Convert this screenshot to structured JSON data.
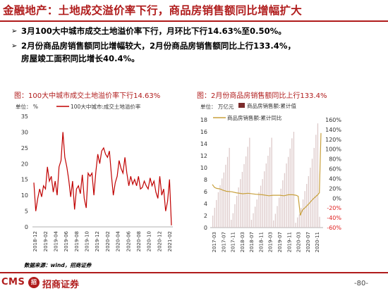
{
  "page": {
    "title": "金融地产：土地成交溢价率下行，商品房销售额同比增幅扩大",
    "bullets": [
      "3月100大中城市成交土地溢价率下行，月环比下行14.63%至0.50%。",
      "2月份商品房销售额同比增幅较大，2月份商品房销售额同比上行133.4%，",
      "房屋竣工面积同比增长40.4%。"
    ],
    "bullet_mark": "➢",
    "source": "数据来源：wind，招商证券",
    "logo_cms": "CMS",
    "logo_circle": "招",
    "logo_cn": "招商证券",
    "page_number": "-80-"
  },
  "chart_data": [
    {
      "type": "line",
      "title": "图：100大中城市成交土地溢价率下行14.63%",
      "unit_label": "单位：  %",
      "legend": "100大中城市:成交土地溢价率",
      "legend_color": "#c00000",
      "x_ticks": [
        "2018-12",
        "2019-02",
        "2019-04",
        "2019-06",
        "2019-08",
        "2019-10",
        "2019-12",
        "2020-02",
        "2020-04",
        "2020-06",
        "2020-08",
        "2020-10",
        "2020-12",
        "2021-02"
      ],
      "y_ticks": [
        0,
        5,
        10,
        15,
        20,
        25,
        30,
        35
      ],
      "ylim": [
        0,
        35
      ],
      "series_values": [
        14.0,
        5.0,
        9.0,
        12.0,
        9.5,
        13.0,
        12.0,
        19.0,
        14.5,
        16.0,
        11.0,
        14.5,
        10.0,
        19.0,
        21.0,
        30.0,
        22.0,
        19.0,
        15.0,
        9.5,
        14.5,
        5.5,
        12.0,
        13.0,
        10.5,
        16.5,
        9.0,
        6.0,
        17.0,
        16.0,
        17.0,
        10.0,
        17.5,
        23.0,
        20.0,
        24.0,
        25.0,
        23.0,
        22.0,
        24.0,
        16.5,
        10.0,
        14.0,
        16.0,
        21.0,
        18.5,
        17.0,
        22.0,
        17.0,
        13.0,
        16.0,
        13.5,
        15.0,
        13.0,
        16.0,
        12.0,
        12.5,
        14.5,
        13.0,
        12.0,
        15.5,
        13.0,
        14.5,
        11.0,
        9.0,
        16.0,
        10.0,
        12.0,
        5.0,
        8.0,
        15.0,
        0.5
      ]
    },
    {
      "type": "bar+line",
      "title": "图：2月份商品房销售额同比上行133.4%",
      "unit_label": "单位：  万亿元",
      "legend": [
        {
          "name": "商品房销售额:累计值",
          "color": "#7b2c2c"
        },
        {
          "name": "商品房销售额:累计同比",
          "color": "#c8a03c"
        }
      ],
      "x_ticks": [
        "2017-03",
        "2017-07",
        "2017-11",
        "2018-03",
        "2018-07",
        "2018-11",
        "2019-03",
        "2019-07",
        "2019-11",
        "2020-03",
        "2020-07",
        "2020-11"
      ],
      "y_left_ticks": [
        0,
        2,
        4,
        6,
        8,
        10,
        12,
        14,
        16,
        18
      ],
      "y_left_lim": [
        0,
        18
      ],
      "y_right_ticks": [
        "160%",
        "140%",
        "120%",
        "100%",
        "80%",
        "60%",
        "40%",
        "20%",
        "0%",
        "-20%",
        "-40%",
        "-60%"
      ],
      "y_right_lim": [
        -60,
        160
      ],
      "bar_values": [
        2.0,
        3.3,
        4.6,
        5.9,
        7.1,
        8.2,
        9.2,
        10.5,
        11.8,
        13.3,
        1.3,
        2.4,
        3.9,
        5.3,
        6.7,
        8.1,
        9.3,
        10.6,
        11.9,
        13.5,
        15.0,
        1.3,
        2.4,
        3.5,
        4.7,
        5.9,
        7.0,
        8.1,
        9.4,
        10.7,
        12.0,
        13.4,
        15.0,
        1.2,
        2.3,
        3.6,
        5.0,
        6.5,
        7.9,
        9.1,
        10.7,
        11.8,
        13.2,
        14.9,
        16.0,
        0.8,
        1.7,
        2.2,
        3.3,
        4.7,
        6.1,
        7.3,
        8.6,
        10.0,
        11.5,
        13.3,
        15.5,
        17.4,
        1.8
      ]
    }
  ]
}
